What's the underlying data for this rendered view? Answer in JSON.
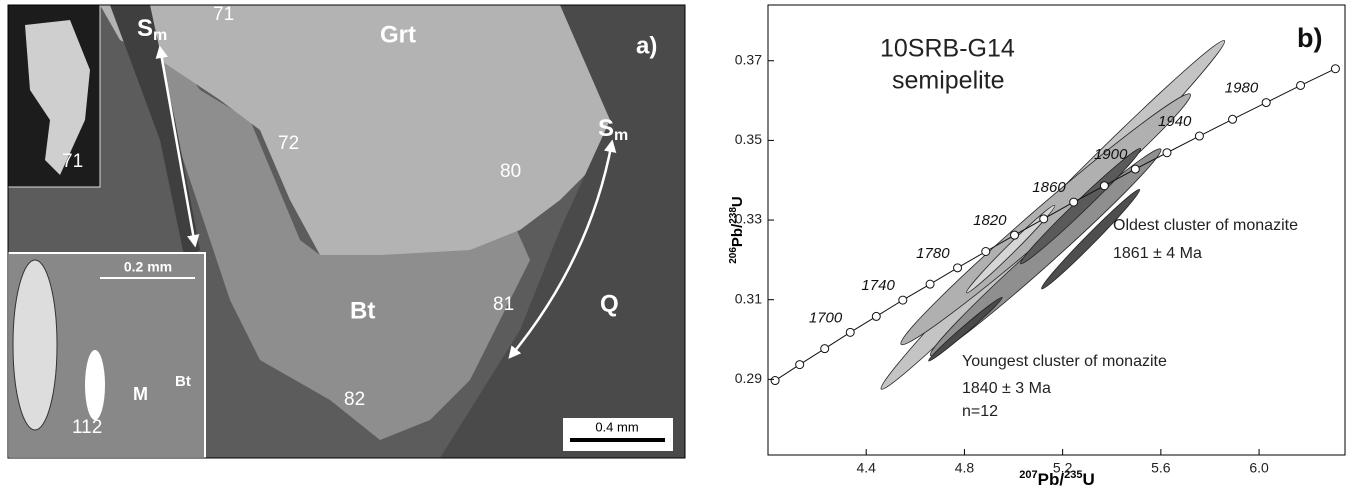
{
  "image_panel": {
    "panel_label": "a)",
    "minerals": [
      "Grt",
      "Bt",
      "Q"
    ],
    "grains": [
      "71",
      "72",
      "80",
      "81",
      "82"
    ],
    "foliation": {
      "main": "S",
      "sub": "m"
    },
    "scale_bar": "0.4 mm",
    "inset_top": {
      "grain": "71"
    },
    "inset_bottom": {
      "scale_bar": "0.2 mm",
      "grain": "112",
      "labels": [
        "M",
        "Bt"
      ]
    }
  },
  "chart_data": {
    "type": "concordia",
    "title": "10SRB-G14",
    "subtitle": "semipelite",
    "panel_label": "b)",
    "xlabel": {
      "mass1": "207",
      "el1": "Pb/",
      "mass2": "235",
      "el2": "U"
    },
    "ylabel": {
      "mass1": "206",
      "el1": "Pb/",
      "mass2": "238",
      "el2": "U"
    },
    "xlim": [
      4.0,
      6.35
    ],
    "ylim": [
      0.271,
      0.384
    ],
    "xticks": [
      4.4,
      4.8,
      5.2,
      5.6,
      {
        "value": 6,
        "label": "6.0"
      }
    ],
    "yticks": [
      0.29,
      0.31,
      0.33,
      0.35,
      0.37
    ],
    "concordia": {
      "x": [
        4.029,
        4.129,
        4.231,
        4.335,
        4.441,
        4.549,
        4.66,
        4.772,
        4.887,
        5.004,
        5.123,
        5.245,
        5.37,
        5.496,
        5.625,
        5.757,
        5.892,
        6.029,
        6.169,
        6.311
      ],
      "values": [
        0.2897,
        0.2937,
        0.2977,
        0.3018,
        0.3058,
        0.3099,
        0.3139,
        0.318,
        0.3221,
        0.3262,
        0.3303,
        0.3345,
        0.3386,
        0.3428,
        0.3469,
        0.3511,
        0.3553,
        0.3595,
        0.3638,
        0.368
      ],
      "labels": [
        null,
        null,
        null,
        "1700",
        null,
        "1740",
        null,
        "1780",
        null,
        "1820",
        null,
        "1860",
        null,
        "1900",
        null,
        "1940",
        null,
        "1980",
        null,
        null
      ]
    },
    "ellipses": [
      {
        "x": 5.16,
        "y": 0.3313,
        "x_err": 0.7,
        "y_err": 0.0438,
        "rho": 0.995,
        "color": "#c4c4c4"
      },
      {
        "x": 5.131,
        "y": 0.3302,
        "x_err": 0.59,
        "y_err": 0.0315,
        "rho": 0.99,
        "color": "#b0b0b0"
      },
      {
        "x": 5.131,
        "y": 0.3219,
        "x_err": 0.47,
        "y_err": 0.026,
        "rho": 0.99,
        "color": "#8f8f8f"
      },
      {
        "x": 5.314,
        "y": 0.3252,
        "x_err": 0.2,
        "y_err": 0.0125,
        "rho": 0.99,
        "color": "#4e4e4e"
      },
      {
        "x": 5.273,
        "y": 0.3335,
        "x_err": 0.245,
        "y_err": 0.0145,
        "rho": 0.99,
        "color": "#5a5a5a"
      },
      {
        "x": 4.804,
        "y": 0.3026,
        "x_err": 0.15,
        "y_err": 0.008,
        "rho": 0.99,
        "color": "#4a4a4a"
      },
      {
        "x": 4.988,
        "y": 0.3227,
        "x_err": 0.18,
        "y_err": 0.011,
        "rho": 0.99,
        "color": "#d6d6d6"
      }
    ],
    "annotations": [
      "Oldest cluster of monazite",
      "1861 ± 4 Ma",
      "Youngest cluster of monazite",
      "1840 ± 3 Ma",
      "n=12"
    ]
  }
}
